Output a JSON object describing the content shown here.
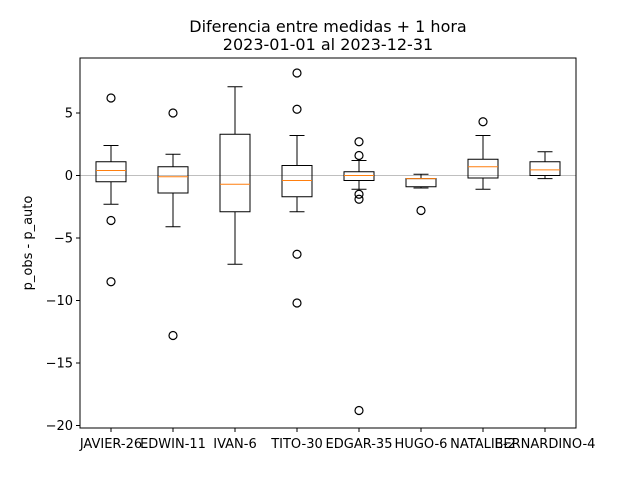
{
  "chart_data": {
    "type": "boxplot",
    "title": "Diferencia entre medidas + 1 hora",
    "subtitle": "2023-01-01 al 2023-12-31",
    "xlabel": "",
    "ylabel": "p_obs - p_auto",
    "ylim": [
      -20.2,
      9.4
    ],
    "yticks": [
      5,
      0,
      -5,
      -10,
      -15,
      -20
    ],
    "yticklabels": [
      "5",
      "0",
      "−5",
      "−10",
      "−15",
      "−20"
    ],
    "reference_line_y": 0,
    "grid": false,
    "colors": {
      "box": "#000000",
      "median": "#ff7f0e",
      "reference": "#aaaaaa"
    },
    "categories": [
      "JAVIER-26",
      "EDWIN-11",
      "IVAN-6",
      "TITO-30",
      "EDGAR-35",
      "HUGO-6",
      "NATALIE-2",
      "BERNARDINO-4"
    ],
    "boxes": [
      {
        "q1": -0.5,
        "median": 0.4,
        "q3": 1.1,
        "whisker_low": -2.3,
        "whisker_high": 2.4,
        "outliers": [
          6.2,
          -3.6,
          -8.5
        ]
      },
      {
        "q1": -1.4,
        "median": -0.1,
        "q3": 0.7,
        "whisker_low": -4.1,
        "whisker_high": 1.7,
        "outliers": [
          5.0,
          -12.8
        ]
      },
      {
        "q1": -2.9,
        "median": -0.7,
        "q3": 3.3,
        "whisker_low": -7.1,
        "whisker_high": 7.1,
        "outliers": []
      },
      {
        "q1": -1.7,
        "median": -0.4,
        "q3": 0.8,
        "whisker_low": -2.9,
        "whisker_high": 3.2,
        "outliers": [
          8.2,
          5.3,
          -6.3,
          -10.2
        ]
      },
      {
        "q1": -0.4,
        "median": 0.0,
        "q3": 0.3,
        "whisker_low": -1.1,
        "whisker_high": 1.2,
        "outliers": [
          2.7,
          1.6,
          -1.5,
          -1.9,
          -18.8
        ]
      },
      {
        "q1": -0.9,
        "median": -0.25,
        "q3": -0.25,
        "whisker_low": -1.0,
        "whisker_high": 0.1,
        "outliers": [
          -2.8
        ]
      },
      {
        "q1": -0.2,
        "median": 0.7,
        "q3": 1.3,
        "whisker_low": -1.1,
        "whisker_high": 3.2,
        "outliers": [
          4.3
        ]
      },
      {
        "q1": 0.0,
        "median": 0.45,
        "q3": 1.1,
        "whisker_low": -0.25,
        "whisker_high": 1.9,
        "outliers": []
      }
    ]
  }
}
